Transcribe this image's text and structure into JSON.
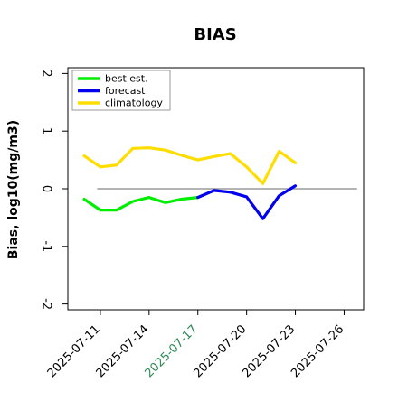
{
  "chart_data": {
    "type": "line",
    "title": "BIAS",
    "xlabel": "",
    "ylabel": "Bias, log10(mg/m3)",
    "ylim": [
      -2.1,
      2.1
    ],
    "yticks": [
      -2,
      -1,
      0,
      1,
      2
    ],
    "ytick_labels": [
      "-2",
      "-1",
      "0",
      "1",
      "2"
    ],
    "x_dates": [
      "2025-07-11",
      "2025-07-14",
      "2025-07-17",
      "2025-07-20",
      "2025-07-23",
      "2025-07-26"
    ],
    "xlim": [
      -2.0,
      16.2
    ],
    "xtick_labels": [
      "2025-07-11",
      "2025-07-14",
      "2025-07-17",
      "2025-07-20",
      "2025-07-23",
      "2025-07-26"
    ],
    "highlight_tick": "2025-07-17",
    "highlight_color": "#2e8b57",
    "zero_line": true,
    "grid": false,
    "legend_position": "top-left",
    "series": [
      {
        "name": "best est.",
        "color": "#00ee00",
        "x": [
          "2025-07-10",
          "2025-07-11",
          "2025-07-12",
          "2025-07-13",
          "2025-07-14",
          "2025-07-15",
          "2025-07-16",
          "2025-07-17"
        ],
        "values": [
          -0.18,
          -0.37,
          -0.37,
          -0.22,
          -0.15,
          -0.24,
          -0.18,
          -0.15
        ]
      },
      {
        "name": "forecast",
        "color": "#0000ee",
        "x": [
          "2025-07-17",
          "2025-07-18",
          "2025-07-19",
          "2025-07-20",
          "2025-07-21",
          "2025-07-22",
          "2025-07-23"
        ],
        "values": [
          -0.15,
          -0.03,
          -0.06,
          -0.14,
          -0.52,
          -0.12,
          0.05
        ]
      },
      {
        "name": "climatology",
        "color": "#ffdd00",
        "x": [
          "2025-07-10",
          "2025-07-11",
          "2025-07-12",
          "2025-07-13",
          "2025-07-14",
          "2025-07-15",
          "2025-07-16",
          "2025-07-17",
          "2025-07-18",
          "2025-07-19",
          "2025-07-20",
          "2025-07-21",
          "2025-07-22",
          "2025-07-23"
        ],
        "values": [
          0.57,
          0.38,
          0.41,
          0.7,
          0.71,
          0.67,
          0.58,
          0.5,
          0.56,
          0.61,
          0.38,
          0.09,
          0.65,
          0.45
        ]
      }
    ]
  }
}
